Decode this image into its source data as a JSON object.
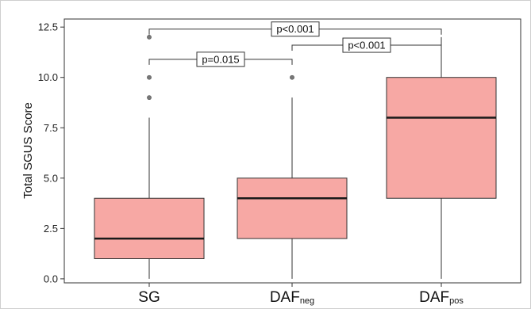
{
  "chart_data": {
    "type": "box",
    "ylabel": "Total SGUS Score",
    "ylim": [
      -0.2,
      12.9
    ],
    "yticks": [
      0.0,
      2.5,
      5.0,
      7.5,
      10.0,
      12.5
    ],
    "ytick_labels": [
      "0.0",
      "2.5",
      "5.0",
      "7.5",
      "10.0",
      "12.5"
    ],
    "grid": false,
    "box_color": "#f7a8a4",
    "categories": [
      {
        "main": "SG",
        "sub": ""
      },
      {
        "main": "DAF",
        "sub": "neg"
      },
      {
        "main": "DAF",
        "sub": "pos"
      }
    ],
    "boxes": [
      {
        "min": 0,
        "q1": 1,
        "median": 2,
        "q3": 4,
        "max": 8,
        "outliers": [
          9,
          10,
          12
        ]
      },
      {
        "min": 0,
        "q1": 2,
        "median": 4,
        "q3": 5,
        "max": 9,
        "outliers": [
          10
        ]
      },
      {
        "min": 0,
        "q1": 4,
        "median": 8,
        "q3": 10,
        "max": 12,
        "outliers": []
      }
    ],
    "comparisons": [
      {
        "from": 0,
        "to": 2,
        "label": "p<0.001",
        "y": 12.4
      },
      {
        "from": 1,
        "to": 2,
        "label": "p<0.001",
        "y": 11.6
      },
      {
        "from": 0,
        "to": 1,
        "label": "p=0.015",
        "y": 10.9
      }
    ]
  }
}
